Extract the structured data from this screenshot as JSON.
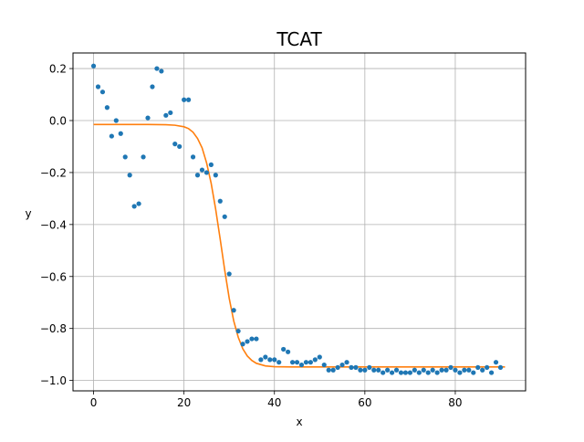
{
  "chart_data": {
    "type": "scatter",
    "title": "TCAT",
    "xlabel": "x",
    "ylabel": "y",
    "xlim": [
      -4.55,
      95.55
    ],
    "ylim": [
      -1.04,
      0.26
    ],
    "xticks": [
      0,
      20,
      40,
      60,
      80
    ],
    "yticks": [
      -1.0,
      -0.8,
      -0.6,
      -0.4,
      -0.2,
      0.0,
      0.2
    ],
    "xtick_labels": [
      "0",
      "20",
      "40",
      "60",
      "80"
    ],
    "ytick_labels": [
      "−1.0",
      "−0.8",
      "−0.6",
      "−0.4",
      "−0.2",
      "0.0",
      "0.2"
    ],
    "grid": true,
    "legend": "none",
    "colors": {
      "points": "#1f77b4",
      "fit": "#ff7f0e",
      "grid": "#b0b0b0"
    },
    "series": [
      {
        "kind": "scatter",
        "x": [
          0,
          1,
          2,
          3,
          4,
          5,
          6,
          7,
          8,
          9,
          10,
          11,
          12,
          13,
          14,
          15,
          16,
          17,
          18,
          19,
          20,
          21,
          22,
          23,
          24,
          25,
          26,
          27,
          28,
          29,
          30,
          31,
          32,
          33,
          34,
          35,
          36,
          37,
          38,
          39,
          40,
          41,
          42,
          43,
          44,
          45,
          46,
          47,
          48,
          49,
          50,
          51,
          52,
          53,
          54,
          55,
          56,
          57,
          58,
          59,
          60,
          61,
          62,
          63,
          64,
          65,
          66,
          67,
          68,
          69,
          70,
          71,
          72,
          73,
          74,
          75,
          76,
          77,
          78,
          79,
          80,
          81,
          82,
          83,
          84,
          85,
          86,
          87,
          88,
          89,
          90
        ],
        "y": [
          0.21,
          0.13,
          0.11,
          0.05,
          -0.06,
          0.0,
          -0.05,
          -0.14,
          -0.21,
          -0.33,
          -0.32,
          -0.14,
          0.01,
          0.13,
          0.2,
          0.19,
          0.02,
          0.03,
          -0.09,
          -0.1,
          0.08,
          0.08,
          -0.14,
          -0.21,
          -0.19,
          -0.2,
          -0.17,
          -0.21,
          -0.31,
          -0.37,
          -0.59,
          -0.73,
          -0.81,
          -0.86,
          -0.85,
          -0.84,
          -0.84,
          -0.92,
          -0.91,
          -0.92,
          -0.92,
          -0.93,
          -0.88,
          -0.89,
          -0.93,
          -0.93,
          -0.94,
          -0.93,
          -0.93,
          -0.92,
          -0.91,
          -0.94,
          -0.96,
          -0.96,
          -0.95,
          -0.94,
          -0.93,
          -0.95,
          -0.95,
          -0.96,
          -0.96,
          -0.95,
          -0.96,
          -0.96,
          -0.97,
          -0.96,
          -0.97,
          -0.96,
          -0.97,
          -0.97,
          -0.97,
          -0.96,
          -0.97,
          -0.96,
          -0.97,
          -0.96,
          -0.97,
          -0.96,
          -0.96,
          -0.95,
          -0.96,
          -0.97,
          -0.96,
          -0.96,
          -0.97,
          -0.95,
          -0.96,
          -0.95,
          -0.97,
          -0.93,
          -0.95
        ]
      },
      {
        "kind": "line",
        "x": [
          0,
          4,
          8,
          12,
          16,
          18,
          20,
          21,
          22,
          23,
          24,
          25,
          26,
          27,
          28,
          29,
          30,
          31,
          32,
          33,
          34,
          35,
          36,
          38,
          40,
          44,
          50,
          60,
          70,
          80,
          91
        ],
        "y": [
          -0.015,
          -0.015,
          -0.015,
          -0.015,
          -0.016,
          -0.018,
          -0.024,
          -0.031,
          -0.045,
          -0.069,
          -0.105,
          -0.163,
          -0.241,
          -0.341,
          -0.456,
          -0.575,
          -0.684,
          -0.771,
          -0.834,
          -0.878,
          -0.906,
          -0.923,
          -0.934,
          -0.944,
          -0.947,
          -0.948,
          -0.948,
          -0.948,
          -0.948,
          -0.948,
          -0.948
        ]
      }
    ]
  }
}
